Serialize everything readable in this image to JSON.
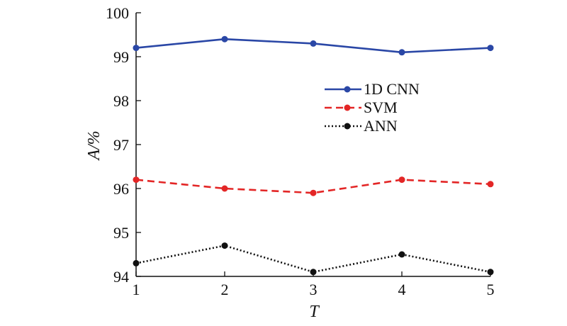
{
  "chart_data": {
    "type": "line",
    "xlabel": "T",
    "ylabel": "A/%",
    "x": [
      1,
      2,
      3,
      4,
      5
    ],
    "xlim": [
      1,
      5
    ],
    "ylim": [
      94,
      100
    ],
    "xticks": [
      "1",
      "2",
      "3",
      "4",
      "5"
    ],
    "yticks": [
      "94",
      "95",
      "96",
      "97",
      "98",
      "99",
      "100"
    ],
    "grid": false,
    "legend_position": "right-middle",
    "series": [
      {
        "name": "1D CNN",
        "values": [
          99.2,
          99.4,
          99.3,
          99.1,
          99.2
        ],
        "color": "#2a47a6",
        "line_style": "solid"
      },
      {
        "name": "SVM",
        "values": [
          96.2,
          96.0,
          95.9,
          96.2,
          96.1
        ],
        "color": "#e32626",
        "line_style": "dashed"
      },
      {
        "name": "ANN",
        "values": [
          94.3,
          94.7,
          94.1,
          94.5,
          94.1
        ],
        "color": "#111111",
        "line_style": "dotted"
      }
    ]
  }
}
